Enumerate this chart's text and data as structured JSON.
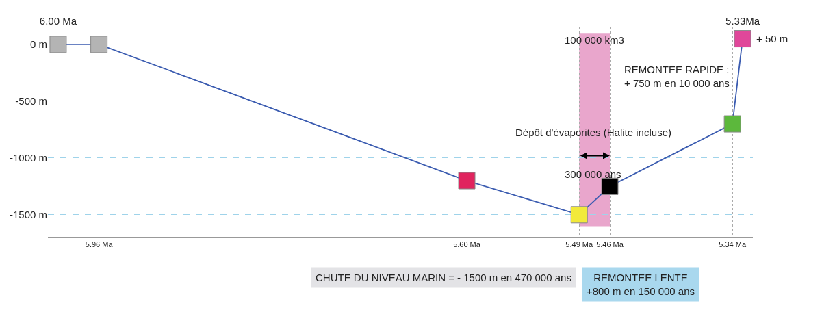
{
  "chart_data": {
    "type": "line",
    "x": [
      6.0,
      5.96,
      5.6,
      5.49,
      5.46,
      5.34,
      5.33
    ],
    "series": [
      {
        "color": "#3a5bb0",
        "colors": [
          "#b4b4b4",
          "#b4b4b4",
          "#e0245e",
          "#f2ea3a",
          "#000000",
          "#5cb83c",
          "#e0479a"
        ],
        "values": [
          0,
          0,
          -1200,
          -1500,
          -1250,
          -700,
          50
        ]
      }
    ],
    "marker": "square",
    "xlim": [
      6.01,
      5.32
    ],
    "xticks": [
      {
        "value": 5.96,
        "label": "5.96 Ma"
      },
      {
        "value": 5.6,
        "label": "5.60 Ma"
      },
      {
        "value": 5.49,
        "label": "5.49 Ma"
      },
      {
        "value": 5.46,
        "label": "5.46 Ma"
      },
      {
        "value": 5.34,
        "label": "5.34 Ma"
      }
    ],
    "x2lim": [
      6.01,
      5.32
    ],
    "x2ticks": [
      {
        "value": 6.0,
        "label": "6.00 Ma"
      },
      {
        "value": 5.33,
        "label": "5.33Ma"
      }
    ],
    "ylim": [
      -1700,
      150
    ],
    "yticks": [
      {
        "value": 0,
        "label": "0 m"
      },
      {
        "value": -500,
        "label": "-500 m"
      },
      {
        "value": -1000,
        "label": "-1000 m"
      },
      {
        "value": -1500,
        "label": "-1500 m"
      }
    ],
    "grid": true,
    "bands": [
      {
        "axis": "x",
        "from": 5.49,
        "to": 5.46,
        "label": "100 000 km3",
        "color": "#e9a6cc"
      }
    ],
    "annotations": [
      {
        "text": "+ 50 m",
        "x": 5.33,
        "y": 50
      },
      {
        "text": "REMONTEE RAPIDE :\n+ 750 m en 10 000 ans",
        "x": 5.335,
        "y": -280
      },
      "Dépôt d'évaporites (Halite incluse)",
      "300 000 ans",
      "CHUTE DU NIVEAU MARIN = - 1500 m en 470 000 ans",
      "REMONTEE LENTE\n+800 m en 150 000 ans"
    ]
  }
}
